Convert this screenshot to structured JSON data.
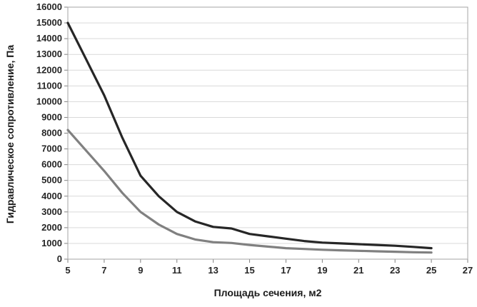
{
  "chart_data": {
    "type": "line",
    "title": "",
    "xlabel": "Площадь сечения, м2",
    "ylabel": "Гидравлическое сопротивление, Па",
    "xlim": [
      5,
      27
    ],
    "ylim": [
      0,
      16000
    ],
    "x_ticks": [
      5,
      7,
      9,
      11,
      13,
      15,
      17,
      19,
      21,
      23,
      25,
      27
    ],
    "y_tick_step": 1000,
    "grid": "horizontal",
    "legend": "none",
    "x": [
      5,
      6,
      7,
      8,
      9,
      10,
      11,
      12,
      13,
      14,
      15,
      16,
      17,
      18,
      19,
      20,
      21,
      22,
      23,
      24,
      25
    ],
    "series": [
      {
        "name": "dark-line",
        "color": "#262626",
        "values": [
          15000,
          12700,
          10400,
          7700,
          5300,
          4000,
          3000,
          2400,
          2050,
          1950,
          1600,
          1450,
          1300,
          1150,
          1050,
          1000,
          950,
          900,
          850,
          780,
          700
        ]
      },
      {
        "name": "gray-line",
        "color": "#808080",
        "values": [
          8200,
          6900,
          5600,
          4200,
          3000,
          2200,
          1600,
          1250,
          1080,
          1030,
          900,
          800,
          700,
          650,
          600,
          560,
          530,
          500,
          470,
          440,
          420
        ]
      }
    ],
    "colors": {
      "grid": "#d9d9d9",
      "border": "#a6a6a6",
      "tick": "#808080",
      "tick_label": "#262626"
    }
  }
}
